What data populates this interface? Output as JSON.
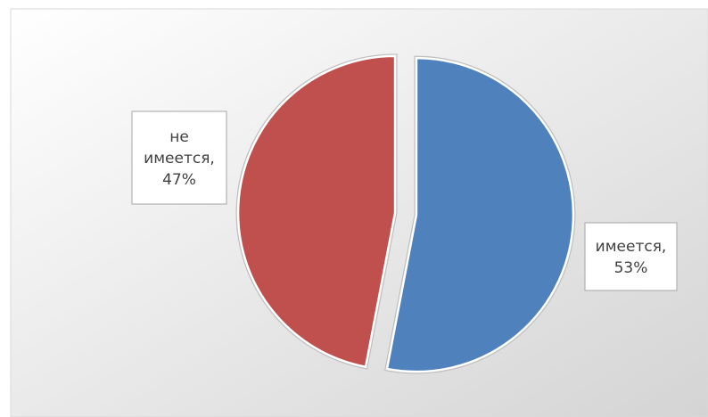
{
  "chart_data": {
    "type": "pie",
    "values": [
      53,
      47
    ],
    "value_labels": [
      "имеется, 53%",
      "не имеется, 47%"
    ],
    "colors": [
      "#4f81bd",
      "#c0504d"
    ],
    "exploded": true
  }
}
